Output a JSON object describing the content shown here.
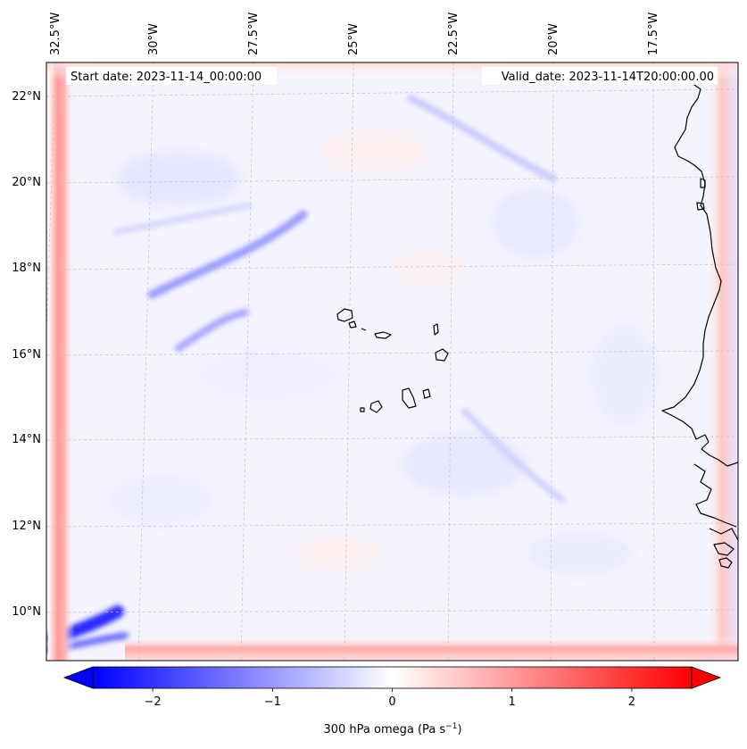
{
  "map": {
    "start_label": "Start date: 2023-11-14_00:00:00",
    "valid_label": "Valid_date: 2023-11-14T20:00:00.00",
    "lon_labels": [
      "32.5°W",
      "30°W",
      "27.5°W",
      "25°W",
      "22.5°W",
      "20°W",
      "17.5°W"
    ],
    "lat_labels": [
      "22°N",
      "20°N",
      "18°N",
      "16°N",
      "14°N",
      "12°N",
      "10°N"
    ],
    "lon_range": [
      -33.0,
      -15.9
    ],
    "lat_range": [
      8.9,
      22.8
    ],
    "variable": "300 hPa omega",
    "units": "Pa s⁻¹"
  },
  "colorbar": {
    "label": "300 hPa omega (Pa s$^{-1}$)",
    "label_text": "300 hPa omega (Pa s",
    "label_sup": "−1",
    "label_close": ")",
    "ticks": [
      "−2",
      "−1",
      "0",
      "1",
      "2"
    ],
    "tick_values": [
      -2,
      -1,
      0,
      1,
      2
    ],
    "range": [
      -2.5,
      2.5
    ],
    "extend": "both",
    "colormap": "bwr",
    "levels": 50
  },
  "colors": {
    "negative": "#0000ff",
    "zero": "#ffffff",
    "positive": "#ff0000",
    "coast": "#000000",
    "grid": "#bbbbbb"
  }
}
